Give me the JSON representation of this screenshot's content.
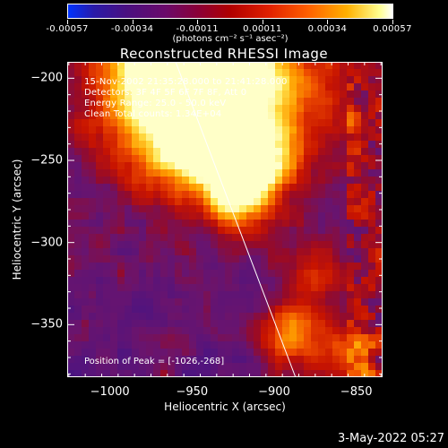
{
  "colorbar": {
    "tick_labels": [
      "-0.00057",
      "-0.00034",
      "-0.00011",
      "0.00011",
      "0.00034",
      "0.00057"
    ],
    "units": "(photons cm⁻² s⁻¹ asec⁻²)",
    "vmin": -0.00057,
    "vmax": 0.00057
  },
  "plot": {
    "title": "Reconstructed RHESSI Image",
    "xlabel": "Heliocentric X (arcsec)",
    "ylabel": "Heliocentric Y (arcsec)",
    "x_ticks": [
      "-1000",
      "-950",
      "-900",
      "-850"
    ],
    "y_ticks": [
      "-200",
      "-250",
      "-300",
      "-350"
    ],
    "info_lines": [
      "15-Nov-2002 21:35:28.000 to 21:41:28.000",
      "Detectors: 3F 4F 5F 6F 7F 8F, Att 0",
      "Energy Range: 25.0 - 50.0 keV",
      "Clean    Total counts: 1.34E+04"
    ],
    "peak_label": "Position of Peak = [-1026,-268]",
    "limb_color": "#ffffff"
  },
  "chart_data": {
    "type": "heatmap",
    "title": "Reconstructed RHESSI Image",
    "xlabel": "Heliocentric X (arcsec)",
    "ylabel": "Heliocentric Y (arcsec)",
    "xlim": [
      -1026,
      -834
    ],
    "ylim": [
      -382,
      -190
    ],
    "x_ticks": [
      -1000,
      -950,
      -900,
      -850
    ],
    "y_ticks": [
      -200,
      -250,
      -300,
      -350
    ],
    "color_range": [
      -0.00057,
      0.00057
    ],
    "peak_position": [
      -1026,
      -268
    ],
    "limb_line": [
      [
        -960,
        -190
      ],
      [
        -887,
        -382
      ]
    ],
    "grid": false
  },
  "footer": {
    "datestamp": "3-May-2022 05:27"
  }
}
